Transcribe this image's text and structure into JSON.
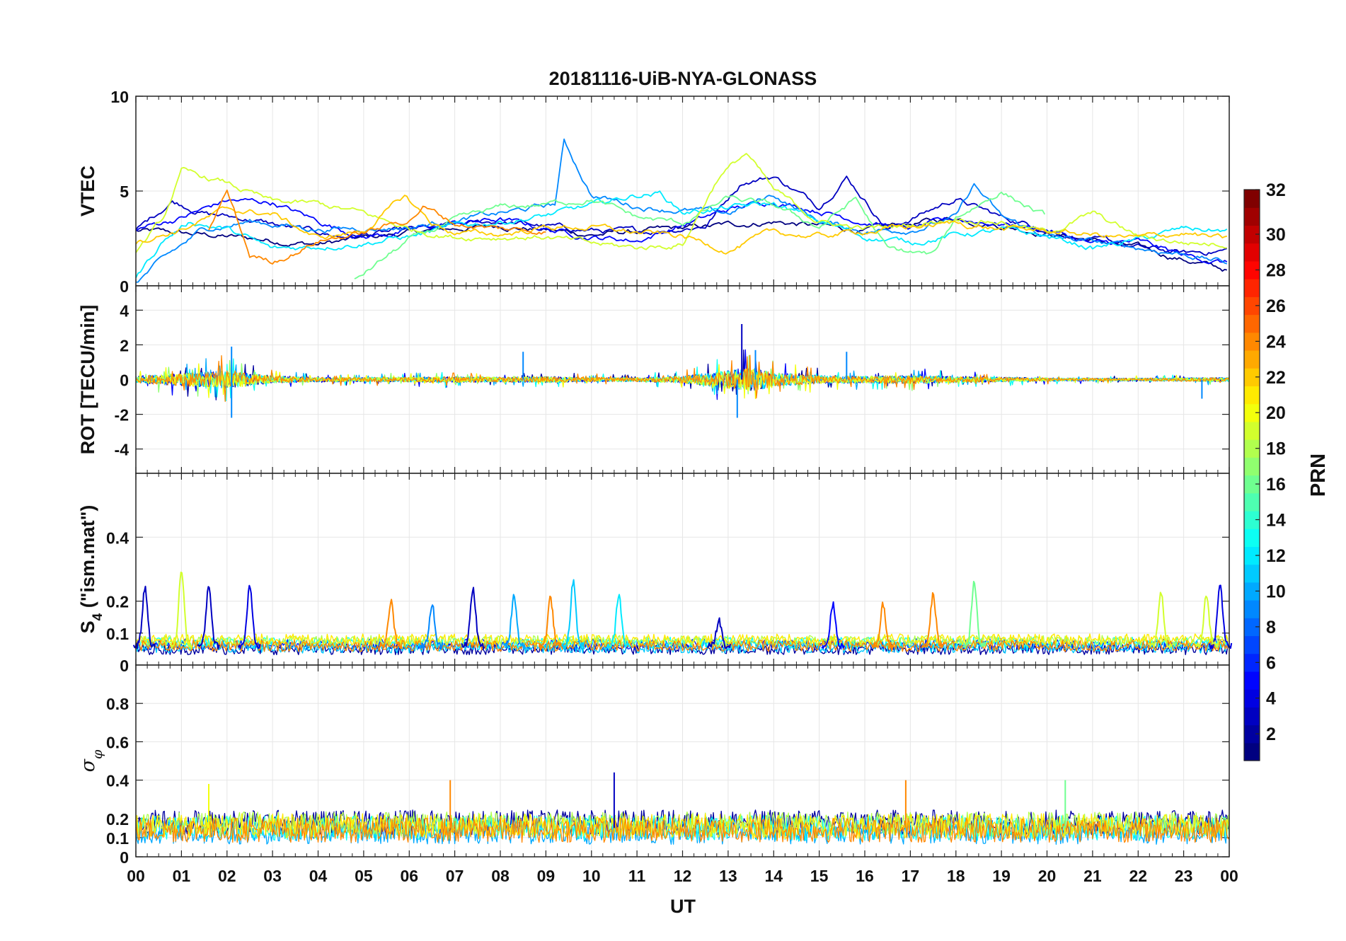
{
  "figure": {
    "title": "20181116-UiB-NYA-GLONASS",
    "xlabel": "UT"
  },
  "chart_data": {
    "type": "line",
    "title": "20181116-UiB-NYA-GLONASS",
    "xlabel": "UT",
    "x_range_hours": [
      0,
      24
    ],
    "x_tick_labels": [
      "00",
      "01",
      "02",
      "03",
      "04",
      "05",
      "06",
      "07",
      "08",
      "09",
      "10",
      "11",
      "12",
      "13",
      "14",
      "15",
      "16",
      "17",
      "18",
      "19",
      "20",
      "21",
      "22",
      "23",
      "00"
    ],
    "grid": true,
    "panels": [
      {
        "id": "vtec",
        "ylabel": "VTEC",
        "ylim": [
          0,
          10
        ],
        "yticks": [
          0,
          5,
          10
        ],
        "ytick_labels": [
          "0",
          "5",
          "10"
        ],
        "noise_amplitude": 0.35,
        "series": [
          {
            "prn": 1,
            "t": [
              0,
              2,
              4,
              6,
              8,
              10,
              12,
              14,
              16,
              18,
              20,
              22,
              24
            ],
            "values": [
              2.9,
              2.6,
              2.2,
              2.8,
              3.2,
              2.7,
              3.0,
              3.4,
              2.9,
              3.6,
              2.8,
              2.0,
              0.8
            ]
          },
          {
            "prn": 3,
            "t": [
              0,
              0.8,
              1.6,
              2.5,
              3.5,
              4.5,
              6,
              8,
              9.5,
              11,
              12.5,
              13.3,
              14,
              15,
              15.6,
              16.5,
              18,
              19,
              20,
              21,
              22,
              23,
              24
            ],
            "values": [
              2.9,
              4.5,
              3.8,
              3.5,
              3.0,
              2.6,
              2.9,
              3.4,
              3.0,
              2.8,
              3.2,
              5.5,
              5.8,
              4.2,
              5.8,
              3.0,
              4.6,
              3.6,
              3.0,
              2.4,
              2.0,
              1.7,
              1.9
            ]
          },
          {
            "prn": 5,
            "t": [
              0,
              1,
              2,
              3,
              4,
              5,
              6,
              7,
              8,
              9,
              10,
              11,
              12,
              13,
              14,
              15,
              16,
              17,
              18,
              19,
              20,
              21,
              22,
              23,
              24
            ],
            "values": [
              3.0,
              3.6,
              4.5,
              4.4,
              3.4,
              2.6,
              2.9,
              3.3,
              3.5,
              3.0,
              2.6,
              2.4,
              3.2,
              4.0,
              4.5,
              4.0,
              3.4,
              3.0,
              3.5,
              3.3,
              3.0,
              2.2,
              2.3,
              1.6,
              1.2
            ]
          },
          {
            "prn": 9,
            "t": [
              0,
              0.5,
              1.5,
              2.5,
              4,
              6,
              8,
              9.2,
              9.4,
              10,
              11,
              12,
              13,
              14,
              15,
              16,
              17,
              18,
              18.4,
              19,
              20,
              21,
              22,
              23,
              24
            ],
            "values": [
              0.2,
              1.2,
              3.0,
              3.4,
              3.0,
              3.1,
              3.8,
              4.3,
              7.6,
              4.8,
              4.2,
              4.0,
              3.8,
              4.8,
              3.4,
              2.9,
              3.0,
              3.6,
              5.3,
              3.6,
              2.6,
              2.3,
              2.0,
              1.7,
              1.2
            ]
          },
          {
            "prn": 12,
            "t": [
              0,
              0.6,
              1.2,
              2,
              3,
              4,
              5,
              6,
              7,
              8,
              9,
              10,
              11,
              11.5,
              12,
              13,
              14,
              15,
              16,
              17,
              18,
              19,
              20,
              21,
              22,
              23,
              24
            ],
            "values": [
              0.4,
              2.4,
              3.4,
              3.0,
              1.9,
              2.1,
              2.3,
              2.6,
              3.1,
              3.4,
              3.7,
              4.2,
              4.8,
              4.9,
              3.9,
              4.1,
              4.3,
              3.4,
              2.6,
              2.3,
              2.7,
              2.9,
              2.6,
              2.0,
              2.4,
              3.0,
              2.9
            ]
          },
          {
            "prn": 16,
            "t": [
              4.8,
              6,
              7,
              8,
              9,
              10,
              11,
              12,
              13,
              14,
              15,
              15.8,
              16.5,
              17.5,
              18,
              19,
              20
            ],
            "values": [
              0.3,
              2.4,
              3.4,
              4.1,
              4.3,
              4.6,
              3.6,
              3.3,
              4.6,
              4.2,
              3.1,
              4.6,
              1.9,
              1.6,
              3.6,
              5.0,
              3.6
            ]
          },
          {
            "prn": 19,
            "t": [
              0,
              0.6,
              1,
              2,
              3,
              4,
              5,
              6,
              7,
              8,
              9,
              10,
              11,
              12,
              12.8,
              13.4,
              14,
              15,
              16,
              17,
              18,
              19,
              20,
              21,
              22,
              23,
              24
            ],
            "values": [
              1.8,
              3.5,
              6.0,
              5.4,
              4.4,
              4.3,
              3.8,
              3.0,
              2.6,
              2.6,
              2.6,
              2.2,
              2.0,
              2.2,
              5.8,
              7.0,
              5.0,
              3.4,
              3.0,
              3.2,
              3.6,
              3.4,
              2.8,
              3.8,
              2.6,
              2.3,
              2.2
            ]
          },
          {
            "prn": 22,
            "t": [
              0,
              1,
              2,
              3,
              4,
              5,
              5.9,
              6.5,
              7,
              8,
              9,
              10,
              11,
              12,
              13,
              14,
              15,
              16,
              17,
              18,
              19,
              20,
              21,
              22,
              23,
              24
            ],
            "values": [
              2.3,
              3.0,
              4.0,
              3.8,
              2.5,
              2.9,
              4.7,
              3.3,
              2.8,
              2.7,
              3.1,
              3.1,
              2.8,
              2.6,
              1.9,
              2.8,
              2.6,
              2.9,
              3.1,
              3.3,
              3.0,
              2.9,
              2.7,
              2.5,
              2.8,
              2.4
            ]
          },
          {
            "prn": 24,
            "t": [
              1.6,
              2,
              2.5,
              3,
              3.5,
              4,
              5,
              6,
              6.3,
              7,
              8,
              9
            ],
            "values": [
              3.0,
              5.0,
              1.6,
              1.3,
              1.8,
              2.4,
              2.8,
              3.5,
              4.2,
              3.3,
              3.0,
              2.9
            ]
          }
        ]
      },
      {
        "id": "rot",
        "ylabel": "ROT [TECU/min]",
        "ylim": [
          -5.4,
          5.4
        ],
        "yticks": [
          -4,
          -2,
          0,
          2,
          4
        ],
        "ytick_labels": [
          "-4",
          "-2",
          "0",
          "2",
          "4"
        ],
        "activity_t": [
          0,
          1,
          2,
          3,
          4,
          5,
          6,
          7,
          8,
          9,
          10,
          11,
          12,
          13,
          13.5,
          14,
          15,
          16,
          17,
          18,
          19,
          20,
          21,
          22,
          23,
          24
        ],
        "activity_amp": [
          0.5,
          0.9,
          1.3,
          0.5,
          0.35,
          0.3,
          0.35,
          0.45,
          0.35,
          0.45,
          0.3,
          0.3,
          0.5,
          1.3,
          1.7,
          1.0,
          0.6,
          0.5,
          0.6,
          0.45,
          0.35,
          0.25,
          0.2,
          0.2,
          0.25,
          0.3
        ],
        "series_prn": [
          2,
          5,
          10,
          13,
          17,
          20,
          24
        ],
        "peaks": [
          {
            "t": 2.1,
            "v": 1.9
          },
          {
            "t": 2.1,
            "v": -2.2
          },
          {
            "t": 8.5,
            "v": 1.6
          },
          {
            "t": 13.3,
            "v": 3.2
          },
          {
            "t": 13.2,
            "v": -2.2
          },
          {
            "t": 13.6,
            "v": 1.7
          },
          {
            "t": 23.4,
            "v": -1.1
          },
          {
            "t": 15.6,
            "v": 1.6
          }
        ]
      },
      {
        "id": "s4",
        "ylabel": "S4 (\"ism.mat\")",
        "ylabel_main": "S",
        "ylabel_sub": "4",
        "ylabel_rest": " (\"ism.mat\")",
        "ylim": [
          0,
          0.6
        ],
        "yticks": [
          0,
          0.1,
          0.2,
          0.4
        ],
        "ytick_labels": [
          "0",
          "0.1",
          "0.2",
          "0.4"
        ],
        "baseline_prn": [
          2,
          6,
          11,
          13,
          18,
          21,
          24
        ],
        "baseline_level": [
          0.05,
          0.065,
          0.055,
          0.07,
          0.075,
          0.08,
          0.06
        ],
        "spikes": [
          {
            "t": 0.2,
            "v": 0.24,
            "prn": 3
          },
          {
            "t": 1.0,
            "v": 0.3,
            "prn": 19
          },
          {
            "t": 1.6,
            "v": 0.25,
            "prn": 3
          },
          {
            "t": 2.5,
            "v": 0.25,
            "prn": 4
          },
          {
            "t": 5.6,
            "v": 0.2,
            "prn": 24
          },
          {
            "t": 6.5,
            "v": 0.19,
            "prn": 9
          },
          {
            "t": 7.4,
            "v": 0.24,
            "prn": 3
          },
          {
            "t": 8.3,
            "v": 0.22,
            "prn": 10
          },
          {
            "t": 9.1,
            "v": 0.21,
            "prn": 24
          },
          {
            "t": 9.6,
            "v": 0.26,
            "prn": 11
          },
          {
            "t": 10.6,
            "v": 0.22,
            "prn": 12
          },
          {
            "t": 12.8,
            "v": 0.14,
            "prn": 3
          },
          {
            "t": 15.3,
            "v": 0.19,
            "prn": 5
          },
          {
            "t": 16.4,
            "v": 0.19,
            "prn": 24
          },
          {
            "t": 17.5,
            "v": 0.22,
            "prn": 24
          },
          {
            "t": 18.4,
            "v": 0.26,
            "prn": 16
          },
          {
            "t": 22.5,
            "v": 0.23,
            "prn": 19
          },
          {
            "t": 23.8,
            "v": 0.25,
            "prn": 4
          },
          {
            "t": 23.5,
            "v": 0.22,
            "prn": 19
          }
        ]
      },
      {
        "id": "sigma_phi",
        "ylabel": "σφ",
        "ylabel_main": "σ",
        "ylabel_sub": "φ",
        "ylim": [
          0,
          1
        ],
        "yticks": [
          0,
          0.1,
          0.2,
          0.4,
          0.6,
          0.8
        ],
        "ytick_labels": [
          "0",
          "0.1",
          "0.2",
          "0.4",
          "0.6",
          "0.8"
        ],
        "series_prn": [
          2,
          10,
          13,
          18,
          21,
          24
        ],
        "series_level": [
          0.18,
          0.13,
          0.15,
          0.17,
          0.16,
          0.14
        ],
        "spikes": [
          {
            "t": 10.5,
            "v": 0.44,
            "prn": 3
          },
          {
            "t": 6.9,
            "v": 0.4,
            "prn": 24
          },
          {
            "t": 16.9,
            "v": 0.4,
            "prn": 24
          },
          {
            "t": 20.4,
            "v": 0.4,
            "prn": 16
          },
          {
            "t": 1.6,
            "v": 0.38,
            "prn": 20
          }
        ]
      }
    ],
    "colorbar": {
      "label": "PRN",
      "range": [
        1,
        32
      ],
      "ticks": [
        2,
        4,
        6,
        8,
        10,
        12,
        14,
        16,
        18,
        20,
        22,
        24,
        26,
        28,
        30,
        32
      ],
      "tick_labels": [
        "2",
        "4",
        "6",
        "8",
        "10",
        "12",
        "14",
        "16",
        "18",
        "20",
        "22",
        "24",
        "26",
        "28",
        "30",
        "32"
      ],
      "levels": 32,
      "colormap": "jet"
    }
  }
}
